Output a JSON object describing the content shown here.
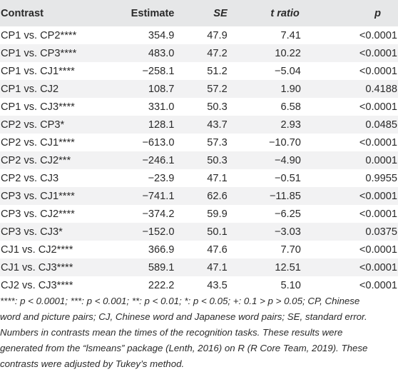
{
  "table": {
    "headers": [
      "Contrast",
      "Estimate",
      "SE",
      "t ratio",
      "p"
    ],
    "rows": [
      [
        "CP1 vs. CP2****",
        "354.9",
        "47.9",
        "7.41",
        "<0.0001"
      ],
      [
        "CP1 vs. CP3****",
        "483.0",
        "47.2",
        "10.22",
        "<0.0001"
      ],
      [
        "CP1 vs. CJ1****",
        "−258.1",
        "51.2",
        "−5.04",
        "<0.0001"
      ],
      [
        "CP1 vs. CJ2",
        "108.7",
        "57.2",
        "1.90",
        "0.4188"
      ],
      [
        "CP1 vs. CJ3****",
        "331.0",
        "50.3",
        "6.58",
        "<0.0001"
      ],
      [
        "CP2 vs. CP3*",
        "128.1",
        "43.7",
        "2.93",
        "0.0485"
      ],
      [
        "CP2 vs. CJ1****",
        "−613.0",
        "57.3",
        "−10.70",
        "<0.0001"
      ],
      [
        "CP2 vs. CJ2***",
        "−246.1",
        "50.3",
        "−4.90",
        "0.0001"
      ],
      [
        "CP2 vs. CJ3",
        "−23.9",
        "47.1",
        "−0.51",
        "0.9955"
      ],
      [
        "CP3 vs. CJ1****",
        "−741.1",
        "62.6",
        "−11.85",
        "<0.0001"
      ],
      [
        "CP3 vs. CJ2****",
        "−374.2",
        "59.9",
        "−6.25",
        "<0.0001"
      ],
      [
        "CP3 vs. CJ3*",
        "−152.0",
        "50.1",
        "−3.03",
        "0.0375"
      ],
      [
        "CJ1 vs. CJ2****",
        "366.9",
        "47.6",
        "7.70",
        "<0.0001"
      ],
      [
        "CJ1 vs. CJ3****",
        "589.1",
        "47.1",
        "12.51",
        "<0.0001"
      ],
      [
        "CJ2 vs. CJ3****",
        "222.2",
        "43.5",
        "5.10",
        "<0.0001"
      ]
    ]
  },
  "footnote": {
    "lines": [
      "****: p < 0.0001; ***: p < 0.001; **: p < 0.01; *: p < 0.05; +: 0.1 > p > 0.05; CP, Chinese",
      "word and picture pairs; CJ, Chinese word and Japanese word pairs; SE, standard error.",
      "Numbers in contrasts mean the times of the recognition tasks. These results were",
      "generated from the “lsmeans” package (Lenth, 2016) on R (R Core Team, 2019). These",
      "contrasts were adjusted by Tukey’s method."
    ]
  }
}
